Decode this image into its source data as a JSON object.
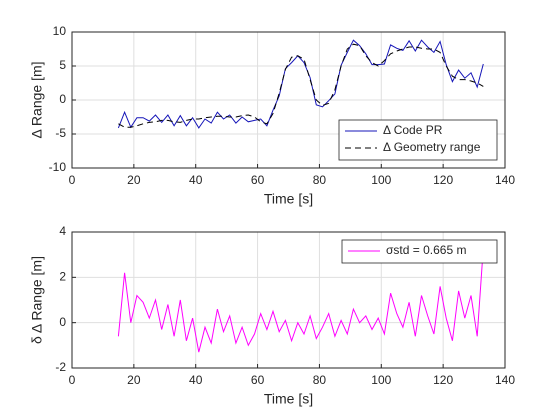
{
  "chart_data": [
    {
      "type": "line",
      "xlabel": "Time [s]",
      "ylabel": "Δ Range [m]",
      "xlim": [
        0,
        140
      ],
      "xticks": [
        0,
        20,
        40,
        60,
        80,
        100,
        120,
        140
      ],
      "ylim": [
        -10,
        10
      ],
      "yticks": [
        -10,
        -5,
        0,
        5,
        10
      ],
      "grid": true,
      "legend": "lower right",
      "x": [
        15,
        17,
        19,
        21,
        23,
        25,
        27,
        29,
        31,
        33,
        35,
        37,
        39,
        41,
        43,
        45,
        47,
        49,
        51,
        53,
        55,
        57,
        59,
        61,
        63,
        65,
        67,
        69,
        71,
        73,
        75,
        77,
        79,
        81,
        83,
        85,
        87,
        89,
        91,
        93,
        95,
        97,
        99,
        101,
        103,
        105,
        107,
        109,
        111,
        113,
        115,
        117,
        119,
        121,
        123,
        125,
        127,
        129,
        131,
        133
      ],
      "series": [
        {
          "name": "Δ Code PR",
          "color": "#1515b8",
          "style": "solid",
          "values": [
            -4.1,
            -1.8,
            -4,
            -2.6,
            -2.6,
            -3.1,
            -2.2,
            -3.3,
            -2.2,
            -3.8,
            -2.3,
            -3.8,
            -2.6,
            -4.1,
            -2.8,
            -3.4,
            -1.8,
            -2.8,
            -2.2,
            -3.4,
            -2.5,
            -3.2,
            -3,
            -2.8,
            -3.8,
            -1.5,
            0.6,
            4.6,
            5.5,
            6.5,
            5.5,
            3.3,
            -0.7,
            -1,
            -0.1,
            0.9,
            5.1,
            7,
            8.8,
            8,
            6.8,
            5.2,
            5.2,
            5.3,
            8.1,
            7.6,
            7.3,
            8.7,
            7.2,
            8.8,
            7.8,
            7,
            8.6,
            5.2,
            2.7,
            4.4,
            3.2,
            4,
            1.9,
            5.3
          ]
        },
        {
          "name": "Δ Geometry range",
          "color": "#000000",
          "style": "dashed",
          "values": [
            -3.5,
            -4,
            -4,
            -3.8,
            -3.5,
            -3.3,
            -3.2,
            -3,
            -3,
            -3.2,
            -3.3,
            -3,
            -2.8,
            -2.8,
            -2.6,
            -2.5,
            -2.4,
            -2.4,
            -2.5,
            -2.5,
            -2.3,
            -2.2,
            -2.5,
            -3.2,
            -3.5,
            -2,
            1,
            4.5,
            6.3,
            6.5,
            6,
            3,
            0,
            -0.8,
            -0.5,
            1.5,
            5,
            7.5,
            8.2,
            8,
            6.5,
            5.5,
            5,
            5.8,
            6.8,
            7.2,
            7.5,
            7.8,
            7.8,
            7.6,
            7.5,
            7.5,
            7,
            5,
            3.5,
            3,
            3,
            2.8,
            2.5,
            2
          ]
        }
      ]
    },
    {
      "type": "line",
      "xlabel": "Time [s]",
      "ylabel": "δ Δ Range [m]",
      "xlim": [
        0,
        140
      ],
      "xticks": [
        0,
        20,
        40,
        60,
        80,
        100,
        120,
        140
      ],
      "ylim": [
        -2,
        4
      ],
      "yticks": [
        -2,
        0,
        2,
        4
      ],
      "grid": true,
      "legend": "upper right",
      "x": [
        15,
        17,
        19,
        21,
        23,
        25,
        27,
        29,
        31,
        33,
        35,
        37,
        39,
        41,
        43,
        45,
        47,
        49,
        51,
        53,
        55,
        57,
        59,
        61,
        63,
        65,
        67,
        69,
        71,
        73,
        75,
        77,
        79,
        81,
        83,
        85,
        87,
        89,
        91,
        93,
        95,
        97,
        99,
        101,
        103,
        105,
        107,
        109,
        111,
        113,
        115,
        117,
        119,
        121,
        123,
        125,
        127,
        129,
        131,
        133
      ],
      "series": [
        {
          "name": "σstd = 0.665 m",
          "color": "#ff00ff",
          "style": "solid",
          "values": [
            -0.6,
            2.2,
            0,
            1.2,
            0.9,
            0.2,
            1,
            -0.3,
            0.8,
            -0.6,
            1,
            -0.8,
            0.2,
            -1.3,
            -0.2,
            -0.9,
            0.6,
            -0.4,
            0.3,
            -0.9,
            -0.2,
            -1,
            -0.5,
            0.4,
            -0.3,
            0.5,
            -0.4,
            0.1,
            -0.8,
            0,
            -0.5,
            0.3,
            -0.7,
            -0.2,
            0.4,
            -0.6,
            0.1,
            -0.5,
            0.6,
            0,
            0.3,
            -0.3,
            0.2,
            -0.5,
            1.3,
            0.4,
            -0.2,
            0.9,
            -0.6,
            1.2,
            0.3,
            -0.5,
            1.6,
            0.2,
            -0.8,
            1.4,
            0.2,
            1.2,
            -0.6,
            3.3
          ]
        }
      ]
    }
  ]
}
